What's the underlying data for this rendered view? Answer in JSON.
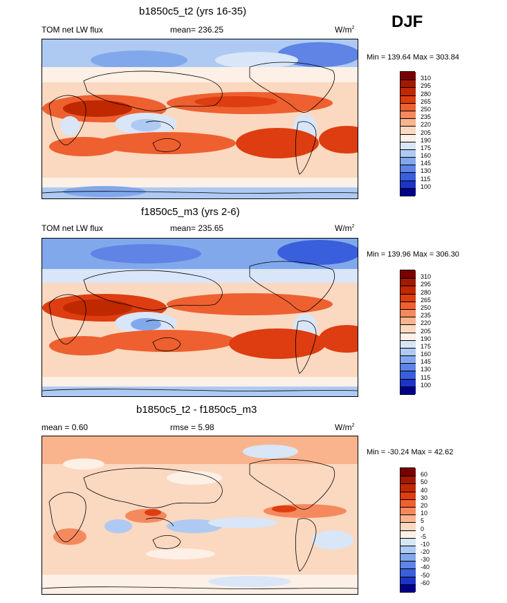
{
  "season": "DJF",
  "panels": [
    {
      "title": "b1850c5_t2 (yrs 16-35)",
      "left_label": "TOM net LW flux",
      "center_label": "mean= 236.25",
      "units": "W/m",
      "units_exp": "2",
      "minmax": "Min = 139.64 Max = 303.84"
    },
    {
      "title": "f1850c5_m3 (yrs 2-6)",
      "left_label": "TOM net LW flux",
      "center_label": "mean= 235.65",
      "units": "W/m",
      "units_exp": "2",
      "minmax": "Min = 139.96 Max = 306.30"
    },
    {
      "title": "b1850c5_t2 - f1850c5_m3",
      "left_label": "mean =   0.60",
      "center_label": "rmse =   5.98",
      "units": "W/m",
      "units_exp": "2",
      "minmax": "Min = -30.24 Max =  42.62"
    }
  ],
  "colorbars": {
    "abs_labels": [
      "310",
      "295",
      "280",
      "265",
      "250",
      "235",
      "220",
      "205",
      "190",
      "175",
      "160",
      "145",
      "130",
      "115",
      "100"
    ],
    "abs_colors": [
      "#7a0000",
      "#a11a00",
      "#c02800",
      "#dd3d10",
      "#ee6030",
      "#f5895e",
      "#f9b48e",
      "#fbd8c0",
      "#fdf0e6",
      "#d8e6f8",
      "#aecaf2",
      "#82a8ec",
      "#5f84e6",
      "#3a5fdc",
      "#1d34c6",
      "#00008a"
    ],
    "diff_labels": [
      "60",
      "50",
      "40",
      "30",
      "20",
      "10",
      "5",
      "0",
      "-5",
      "-10",
      "-20",
      "-30",
      "-40",
      "-50",
      "-60"
    ],
    "diff_colors": [
      "#7a0000",
      "#a11a00",
      "#c02800",
      "#dd3d10",
      "#ee6030",
      "#f5895e",
      "#f9b48e",
      "#fbd8c0",
      "#fdf0e6",
      "#d8e6f8",
      "#aecaf2",
      "#82a8ec",
      "#5f84e6",
      "#3a5fdc",
      "#1d34c6",
      "#00008a"
    ]
  }
}
